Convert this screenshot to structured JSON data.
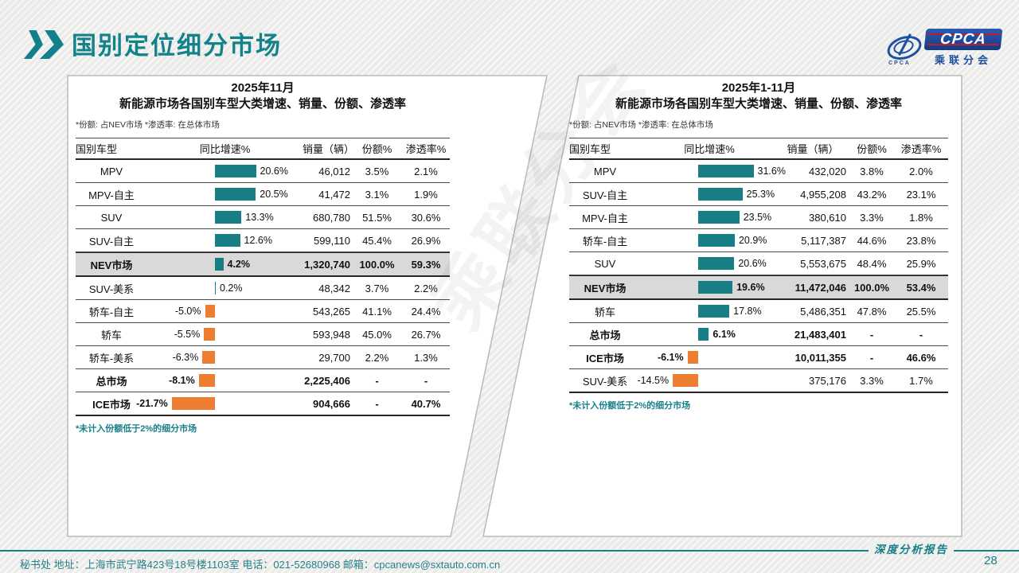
{
  "page": {
    "title": "国别定位细分市场",
    "page_number": "28",
    "logo": {
      "text": "CPCA",
      "subtext": "乘联分会",
      "mini": "CPCA"
    },
    "footer": {
      "secretariat": "秘书处   地址：上海市武宁路423号18号楼1103室  电话：021-52680968   邮箱：cpcanews@sxtauto.com.cn",
      "report_label": "深度分析报告"
    },
    "watermark": "乘联分会"
  },
  "colors": {
    "positive_bar": "#177e86",
    "negative_bar": "#ed7d31",
    "highlight_row": "#d9d9d9",
    "title_teal": "#12828b",
    "footnote_teal": "#17808a"
  },
  "chart_data": [
    {
      "type": "table",
      "title_line1": "2025年11月",
      "title_line2": "新能源市场各国别车型大类增速、销量、份额、渗透率",
      "note": "*份额: 占NEV市场   *渗透率: 在总体市场",
      "footnote": "*未计入份额低于2%的细分市场",
      "columns": [
        "国别车型",
        "同比增速%",
        "销量（辆）",
        "份额%",
        "渗透率%"
      ],
      "bar_column": "同比增速%",
      "bar_axis_range_pct": [
        -25,
        30
      ],
      "rows": [
        {
          "label": "MPV",
          "growth_pct": 20.6,
          "growth_label": "20.6%",
          "sales": "46,012",
          "share": "3.5%",
          "penetration": "2.1%",
          "bold": false,
          "highlight": false
        },
        {
          "label": "MPV-自主",
          "growth_pct": 20.5,
          "growth_label": "20.5%",
          "sales": "41,472",
          "share": "3.1%",
          "penetration": "1.9%",
          "bold": false,
          "highlight": false
        },
        {
          "label": "SUV",
          "growth_pct": 13.3,
          "growth_label": "13.3%",
          "sales": "680,780",
          "share": "51.5%",
          "penetration": "30.6%",
          "bold": false,
          "highlight": false
        },
        {
          "label": "SUV-自主",
          "growth_pct": 12.6,
          "growth_label": "12.6%",
          "sales": "599,110",
          "share": "45.4%",
          "penetration": "26.9%",
          "bold": false,
          "highlight": false
        },
        {
          "label": "NEV市场",
          "growth_pct": 4.2,
          "growth_label": "4.2%",
          "sales": "1,320,740",
          "share": "100.0%",
          "penetration": "59.3%",
          "bold": true,
          "highlight": true
        },
        {
          "label": "SUV-美系",
          "growth_pct": 0.2,
          "growth_label": "0.2%",
          "sales": "48,342",
          "share": "3.7%",
          "penetration": "2.2%",
          "bold": false,
          "highlight": false
        },
        {
          "label": "轿车-自主",
          "growth_pct": -5.0,
          "growth_label": "-5.0%",
          "sales": "543,265",
          "share": "41.1%",
          "penetration": "24.4%",
          "bold": false,
          "highlight": false
        },
        {
          "label": "轿车",
          "growth_pct": -5.5,
          "growth_label": "-5.5%",
          "sales": "593,948",
          "share": "45.0%",
          "penetration": "26.7%",
          "bold": false,
          "highlight": false
        },
        {
          "label": "轿车-美系",
          "growth_pct": -6.3,
          "growth_label": "-6.3%",
          "sales": "29,700",
          "share": "2.2%",
          "penetration": "1.3%",
          "bold": false,
          "highlight": false
        },
        {
          "label": "总市场",
          "growth_pct": -8.1,
          "growth_label": "-8.1%",
          "sales": "2,225,406",
          "share": "-",
          "penetration": "-",
          "bold": true,
          "highlight": false
        },
        {
          "label": "ICE市场",
          "growth_pct": -21.7,
          "growth_label": "-21.7%",
          "sales": "904,666",
          "share": "-",
          "penetration": "40.7%",
          "bold": true,
          "highlight": false
        }
      ]
    },
    {
      "type": "table",
      "title_line1": "2025年1-11月",
      "title_line2": "新能源市场各国别车型大类增速、销量、份额、渗透率",
      "note": "*份额: 占NEV市场   *渗透率: 在总体市场",
      "footnote": "*未计入份额低于2%的细分市场",
      "columns": [
        "国别车型",
        "同比增速%",
        "销量（辆）",
        "份额%",
        "渗透率%"
      ],
      "bar_column": "同比增速%",
      "bar_axis_range_pct": [
        -20,
        35
      ],
      "rows": [
        {
          "label": "MPV",
          "growth_pct": 31.6,
          "growth_label": "31.6%",
          "sales": "432,020",
          "share": "3.8%",
          "penetration": "2.0%",
          "bold": false,
          "highlight": false
        },
        {
          "label": "SUV-自主",
          "growth_pct": 25.3,
          "growth_label": "25.3%",
          "sales": "4,955,208",
          "share": "43.2%",
          "penetration": "23.1%",
          "bold": false,
          "highlight": false
        },
        {
          "label": "MPV-自主",
          "growth_pct": 23.5,
          "growth_label": "23.5%",
          "sales": "380,610",
          "share": "3.3%",
          "penetration": "1.8%",
          "bold": false,
          "highlight": false
        },
        {
          "label": "轿车-自主",
          "growth_pct": 20.9,
          "growth_label": "20.9%",
          "sales": "5,117,387",
          "share": "44.6%",
          "penetration": "23.8%",
          "bold": false,
          "highlight": false
        },
        {
          "label": "SUV",
          "growth_pct": 20.6,
          "growth_label": "20.6%",
          "sales": "5,553,675",
          "share": "48.4%",
          "penetration": "25.9%",
          "bold": false,
          "highlight": false
        },
        {
          "label": "NEV市场",
          "growth_pct": 19.6,
          "growth_label": "19.6%",
          "sales": "11,472,046",
          "share": "100.0%",
          "penetration": "53.4%",
          "bold": true,
          "highlight": true
        },
        {
          "label": "轿车",
          "growth_pct": 17.8,
          "growth_label": "17.8%",
          "sales": "5,486,351",
          "share": "47.8%",
          "penetration": "25.5%",
          "bold": false,
          "highlight": false
        },
        {
          "label": "总市场",
          "growth_pct": 6.1,
          "growth_label": "6.1%",
          "sales": "21,483,401",
          "share": "-",
          "penetration": "-",
          "bold": true,
          "highlight": false
        },
        {
          "label": "ICE市场",
          "growth_pct": -6.1,
          "growth_label": "-6.1%",
          "sales": "10,011,355",
          "share": "-",
          "penetration": "46.6%",
          "bold": true,
          "highlight": false
        },
        {
          "label": "SUV-美系",
          "growth_pct": -14.5,
          "growth_label": "-14.5%",
          "sales": "375,176",
          "share": "3.3%",
          "penetration": "1.7%",
          "bold": false,
          "highlight": false
        }
      ]
    }
  ]
}
